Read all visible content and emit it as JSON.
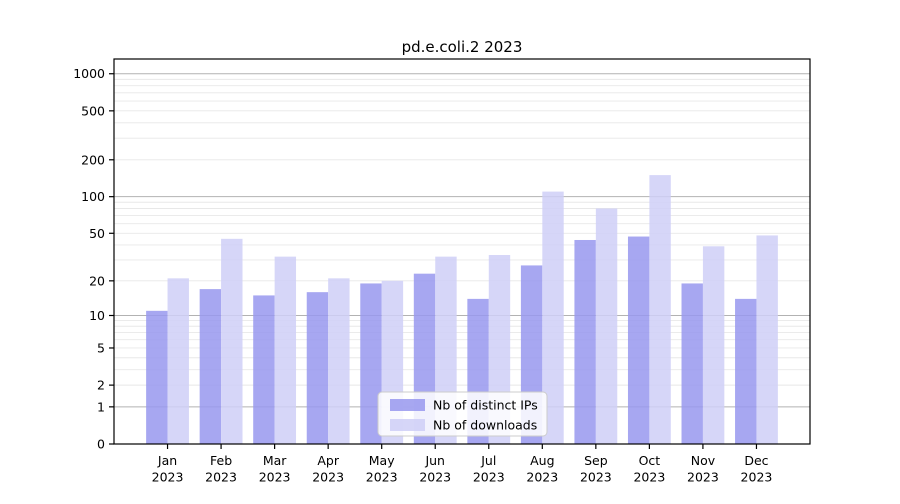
{
  "chart_data": {
    "type": "bar",
    "title": "pd.e.coli.2 2023",
    "scale": "log10(1+y)",
    "categories": [
      "Jan",
      "Feb",
      "Mar",
      "Apr",
      "May",
      "Jun",
      "Jul",
      "Aug",
      "Sep",
      "Oct",
      "Nov",
      "Dec"
    ],
    "year_label": "2023",
    "series": [
      {
        "name": "Nb of distinct IPs",
        "color": "#9898ef",
        "values": [
          11,
          17,
          15,
          16,
          19,
          23,
          14,
          27,
          44,
          47,
          19,
          14
        ]
      },
      {
        "name": "Nb of downloads",
        "color": "#cfcff7",
        "values": [
          21,
          45,
          32,
          21,
          20,
          32,
          33,
          110,
          80,
          150,
          39,
          48
        ]
      }
    ],
    "yticks": [
      0,
      1,
      2,
      5,
      10,
      20,
      50,
      100,
      200,
      500,
      1000
    ],
    "gridlines": {
      "major": [
        1,
        10,
        100,
        1000
      ],
      "minor_decades": [
        1,
        10,
        100
      ]
    },
    "ylim": [
      0,
      1300
    ],
    "xlabel": "",
    "ylabel": "",
    "grid": true,
    "legend_position": "lower center"
  }
}
